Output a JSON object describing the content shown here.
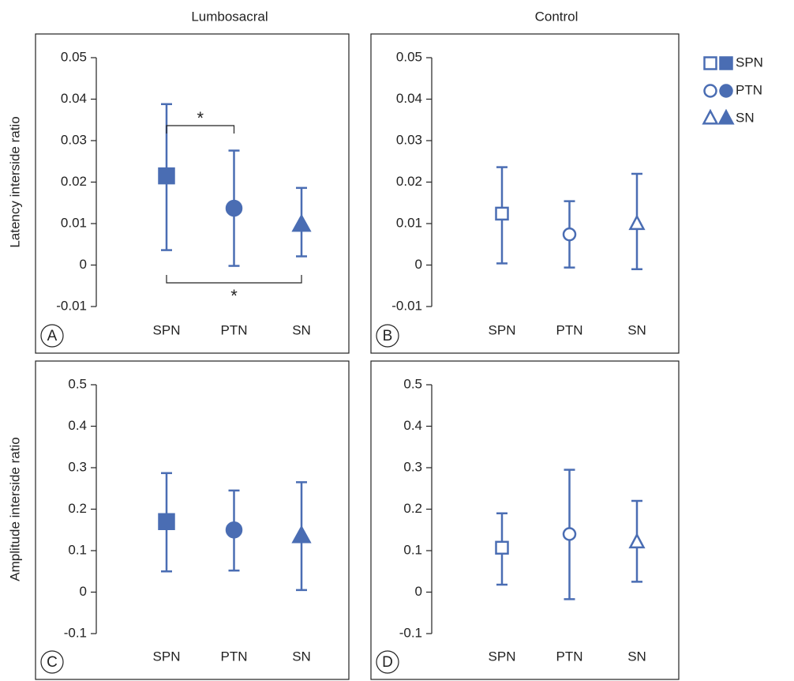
{
  "column_titles": [
    "Lumbosacral",
    "Control"
  ],
  "legend": {
    "labels": [
      "SPN",
      "PTN",
      "SN"
    ],
    "markers": [
      "square",
      "circle",
      "triangle"
    ]
  },
  "chart_data": [
    {
      "type": "errorbar",
      "panel": "A",
      "ylabel": "Latency interside ratio",
      "categories": [
        "SPN",
        "PTN",
        "SN"
      ],
      "values": [
        0.0215,
        0.0137,
        0.0097
      ],
      "lower": [
        0.0036,
        -0.0002,
        0.0021
      ],
      "upper": [
        0.0388,
        0.0276,
        0.0186
      ],
      "color": "#4a6db3",
      "filled": true,
      "ylim": [
        -0.01,
        0.05
      ],
      "yticks": [
        -0.01,
        0,
        0.01,
        0.02,
        0.03,
        0.04,
        0.05
      ],
      "annotations": [
        {
          "text": "*",
          "pair": [
            0,
            1
          ],
          "side": "above"
        },
        {
          "text": "*",
          "pair": [
            0,
            2
          ],
          "side": "below"
        }
      ]
    },
    {
      "type": "errorbar",
      "panel": "B",
      "categories": [
        "SPN",
        "PTN",
        "SN"
      ],
      "values": [
        0.0124,
        0.0074,
        0.0099
      ],
      "lower": [
        0.0004,
        -0.0006,
        -0.001
      ],
      "upper": [
        0.0236,
        0.0154,
        0.022
      ],
      "color": "#4a6db3",
      "filled": false,
      "ylim": [
        -0.01,
        0.05
      ],
      "yticks": [
        -0.01,
        0,
        0.01,
        0.02,
        0.03,
        0.04,
        0.05
      ]
    },
    {
      "type": "errorbar",
      "panel": "C",
      "ylabel": "Amplitude interside ratio",
      "categories": [
        "SPN",
        "PTN",
        "SN"
      ],
      "values": [
        0.17,
        0.15,
        0.135
      ],
      "lower": [
        0.05,
        0.052,
        0.005
      ],
      "upper": [
        0.287,
        0.245,
        0.265
      ],
      "color": "#4a6db3",
      "filled": true,
      "ylim": [
        -0.1,
        0.5
      ],
      "yticks": [
        -0.1,
        0,
        0.1,
        0.2,
        0.3,
        0.4,
        0.5
      ]
    },
    {
      "type": "errorbar",
      "panel": "D",
      "categories": [
        "SPN",
        "PTN",
        "SN"
      ],
      "values": [
        0.107,
        0.14,
        0.12
      ],
      "lower": [
        0.018,
        -0.017,
        0.025
      ],
      "upper": [
        0.19,
        0.295,
        0.22
      ],
      "color": "#4a6db3",
      "filled": false,
      "ylim": [
        -0.1,
        0.5
      ],
      "yticks": [
        -0.1,
        0,
        0.1,
        0.2,
        0.3,
        0.4,
        0.5
      ]
    }
  ]
}
